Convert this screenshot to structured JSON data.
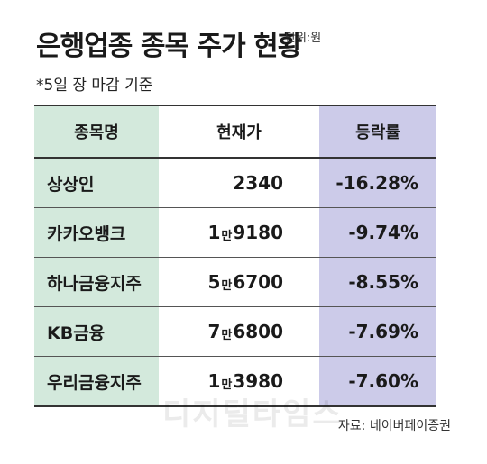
{
  "title": "은행업종 종목 주가 현황",
  "unit": "단위:원",
  "subtitle": "*5일 장 마감 기준",
  "headers": {
    "name": "종목명",
    "price": "현재가",
    "change": "등락률"
  },
  "rows": [
    {
      "name": "상상인",
      "price_man": "",
      "price_rest": "2340",
      "change": "-16.28%"
    },
    {
      "name": "카카오뱅크",
      "price_man": "1",
      "price_rest": "9180",
      "change": "-9.74%"
    },
    {
      "name": "하나금융지주",
      "price_man": "5",
      "price_rest": "6700",
      "change": "-8.55%"
    },
    {
      "name": "KB금융",
      "price_man": "7",
      "price_rest": "6800",
      "change": "-7.69%"
    },
    {
      "name": "우리금융지주",
      "price_man": "1",
      "price_rest": "3980",
      "change": "-7.60%"
    }
  ],
  "man_unit": "만",
  "watermark": "디지털타임스",
  "source": "자료: 네이버페이증권",
  "colors": {
    "name_col": "#d3e9dc",
    "change_col": "#cccbe9"
  }
}
